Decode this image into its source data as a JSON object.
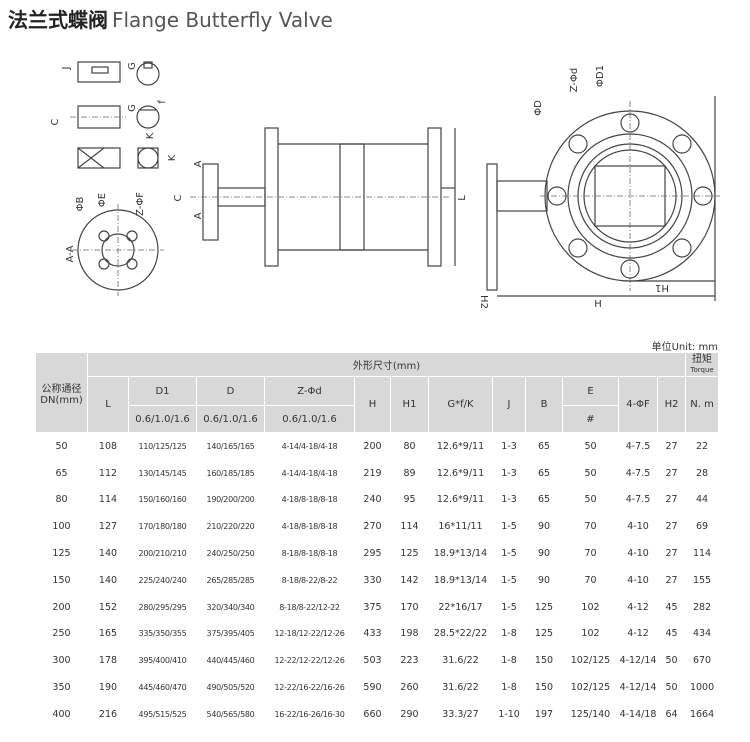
{
  "header": {
    "title_cn": "法兰式蝶阀",
    "title_en": "Flange Butterfly Valve"
  },
  "drawing": {
    "labels": [
      "J",
      "G",
      "f",
      "C",
      "G",
      "K",
      "K",
      "ΦB",
      "ΦE",
      "Z-ΦF",
      "A-A",
      "A",
      "C",
      "A",
      "L",
      "ΦD",
      "Z-Φd",
      "ΦD1",
      "H",
      "H1",
      "H2"
    ]
  },
  "table": {
    "unit": "单位Unit: mm",
    "dn_header": [
      "公称通径",
      "DN(mm)"
    ],
    "group_header": "外形尺寸(mm)",
    "torque_header": [
      "扭矩",
      "Torque"
    ],
    "columns": [
      "L",
      "D1",
      "D",
      "Z-Φd",
      "H",
      "H1",
      "G*f/K",
      "J",
      "B",
      "E",
      "4-ΦF",
      "H2",
      "N. m"
    ],
    "pressure": [
      "0.6/1.0/1.6",
      "0.6/1.0/1.6",
      "0.6/1.0/1.6"
    ],
    "e_sub": "#",
    "rows": [
      [
        50,
        108,
        "110/125/125",
        "140/165/165",
        "4-14/4-18/4-18",
        200,
        80,
        "12.6*9/11",
        "1-3",
        65,
        50,
        "4-7.5",
        27,
        22
      ],
      [
        65,
        112,
        "130/145/145",
        "160/185/185",
        "4-14/4-18/4-18",
        219,
        89,
        "12.6*9/11",
        "1-3",
        65,
        50,
        "4-7.5",
        27,
        28
      ],
      [
        80,
        114,
        "150/160/160",
        "190/200/200",
        "4-18/8-18/8-18",
        240,
        95,
        "12.6*9/11",
        "1-3",
        65,
        50,
        "4-7.5",
        27,
        44
      ],
      [
        100,
        127,
        "170/180/180",
        "210/220/220",
        "4-18/8-18/8-18",
        270,
        114,
        "16*11/11",
        "1-5",
        90,
        70,
        "4-10",
        27,
        69
      ],
      [
        125,
        140,
        "200/210/210",
        "240/250/250",
        "8-18/8-18/8-18",
        295,
        125,
        "18.9*13/14",
        "1-5",
        90,
        70,
        "4-10",
        27,
        114
      ],
      [
        150,
        140,
        "225/240/240",
        "265/285/285",
        "8-18/8-22/8-22",
        330,
        142,
        "18.9*13/14",
        "1-5",
        90,
        70,
        "4-10",
        27,
        155
      ],
      [
        200,
        152,
        "280/295/295",
        "320/340/340",
        "8-18/8-22/12-22",
        375,
        170,
        "22*16/17",
        "1-5",
        125,
        102,
        "4-12",
        45,
        282
      ],
      [
        250,
        165,
        "335/350/355",
        "375/395/405",
        "12-18/12-22/12-26",
        433,
        198,
        "28.5*22/22",
        "1-8",
        125,
        102,
        "4-12",
        45,
        434
      ],
      [
        300,
        178,
        "395/400/410",
        "440/445/460",
        "12-22/12-22/12-26",
        503,
        223,
        "31.6/22",
        "1-8",
        150,
        "102/125",
        "4-12/14",
        50,
        670
      ],
      [
        350,
        190,
        "445/460/470",
        "490/505/520",
        "12-22/16-22/16-26",
        590,
        260,
        "31.6/22",
        "1-8",
        150,
        "102/125",
        "4-12/14",
        50,
        1000
      ],
      [
        400,
        216,
        "495/515/525",
        "540/565/580",
        "16-22/16-26/16-30",
        660,
        290,
        "33.3/27",
        "1-10",
        197,
        "125/140",
        "4-14/18",
        64,
        1664
      ]
    ]
  }
}
